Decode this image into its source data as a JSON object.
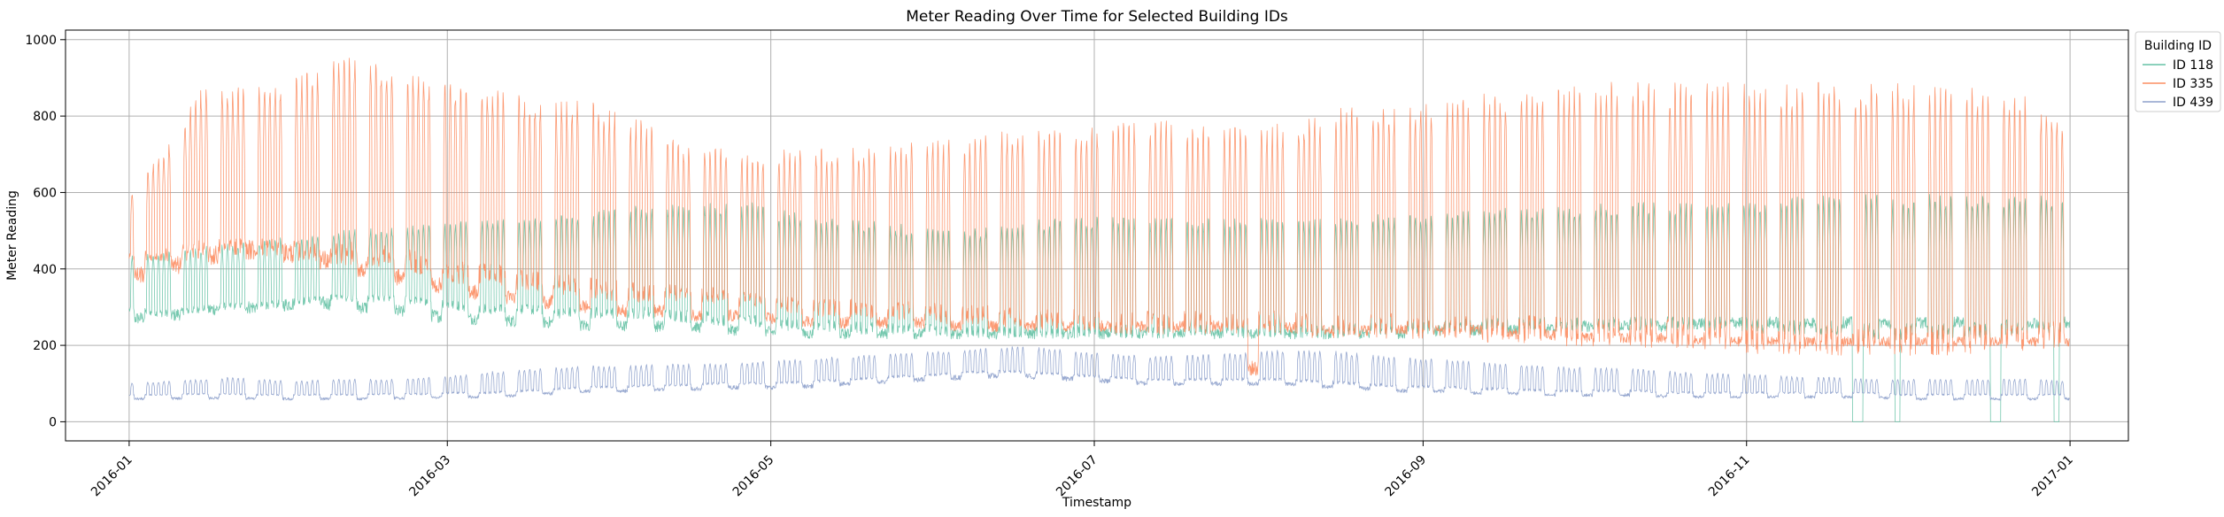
{
  "chart_data": {
    "type": "line",
    "title": "Meter Reading Over Time for Selected Building IDs",
    "xlabel": "Timestamp",
    "ylabel": "Meter Reading",
    "xlim": [
      "2015-12-20",
      "2017-01-12"
    ],
    "ylim": [
      -50,
      1025
    ],
    "x_ticks": [
      "2016-01",
      "2016-03",
      "2016-05",
      "2016-07",
      "2016-09",
      "2016-11",
      "2017-01"
    ],
    "y_ticks": [
      0,
      200,
      400,
      600,
      800,
      1000
    ],
    "grid": true,
    "legend": {
      "title": "Building ID",
      "placement": "outside top-right"
    },
    "series": [
      {
        "name": "ID 118",
        "color": "#66c2a5",
        "frequency": "daily",
        "start": "2016-01-01",
        "weekday_high": [
          430,
          440,
          450,
          460,
          470,
          480,
          490,
          500,
          500,
          510,
          520,
          520,
          520,
          530,
          540,
          550,
          560,
          560,
          560,
          560,
          540,
          520,
          520,
          510,
          500,
          490,
          500,
          510,
          520,
          520,
          530,
          520,
          520,
          520,
          520,
          520,
          520,
          520,
          530,
          530,
          540,
          540,
          550,
          550,
          550,
          560,
          560,
          560,
          560,
          570,
          570,
          580,
          580,
          580,
          580,
          580,
          580,
          580,
          580,
          570
        ],
        "weekday_low": [
          290,
          280,
          290,
          300,
          300,
          310,
          320,
          320,
          320,
          310,
          300,
          290,
          290,
          280,
          280,
          280,
          280,
          270,
          260,
          260,
          250,
          250,
          240,
          240,
          240,
          230,
          230,
          230,
          230,
          230,
          230,
          230,
          230,
          230,
          230,
          230,
          230,
          230,
          240,
          240,
          240,
          250,
          250,
          250,
          250,
          250,
          250,
          250,
          250,
          250,
          240,
          240,
          240,
          230,
          230,
          230,
          230,
          240,
          240,
          250
        ],
        "weekend_level": [
          270,
          275,
          290,
          300,
          300,
          310,
          310,
          300,
          290,
          280,
          270,
          270,
          260,
          260,
          250,
          250,
          250,
          250,
          240,
          240,
          230,
          230,
          230,
          230,
          230,
          230,
          230,
          230,
          230,
          230,
          230,
          230,
          230,
          230,
          230,
          230,
          230,
          230,
          230,
          230,
          240,
          240,
          240,
          240,
          250,
          250,
          250,
          250,
          260,
          260,
          260,
          260,
          260,
          260,
          260,
          260,
          260,
          260,
          260,
          260
        ],
        "zero_dates": [
          "2016-11-21",
          "2016-11-22",
          "2016-11-29",
          "2016-12-17",
          "2016-12-18",
          "2016-12-29"
        ]
      },
      {
        "name": "ID 335",
        "color": "#fc8d62",
        "frequency": "daily",
        "start": "2016-01-01",
        "weekday_high": [
          600,
          700,
          850,
          860,
          860,
          880,
          920,
          940,
          900,
          880,
          860,
          850,
          830,
          820,
          820,
          780,
          760,
          700,
          700,
          680,
          700,
          700,
          700,
          700,
          720,
          720,
          740,
          740,
          740,
          750,
          760,
          770,
          760,
          760,
          760,
          760,
          780,
          800,
          800,
          800,
          820,
          830,
          840,
          850,
          850,
          860,
          860,
          860,
          860,
          860,
          860,
          860,
          860,
          860,
          860,
          860,
          850,
          840,
          820,
          780
        ],
        "weekday_low": [
          430,
          430,
          440,
          450,
          450,
          440,
          430,
          430,
          420,
          400,
          380,
          380,
          360,
          350,
          340,
          330,
          330,
          330,
          320,
          310,
          300,
          290,
          290,
          280,
          280,
          270,
          270,
          260,
          260,
          260,
          250,
          250,
          250,
          250,
          250,
          250,
          240,
          240,
          240,
          240,
          230,
          230,
          230,
          230,
          220,
          220,
          220,
          220,
          210,
          210,
          200,
          200,
          200,
          200,
          200,
          200,
          200,
          210,
          210,
          220
        ],
        "weekend_level": [
          380,
          400,
          420,
          450,
          450,
          440,
          420,
          400,
          380,
          360,
          350,
          330,
          320,
          310,
          300,
          290,
          290,
          280,
          280,
          270,
          270,
          260,
          260,
          260,
          260,
          250,
          250,
          250,
          250,
          250,
          250,
          250,
          250,
          250,
          250,
          250,
          240,
          240,
          240,
          240,
          240,
          240,
          230,
          230,
          220,
          220,
          220,
          220,
          210,
          210,
          210,
          210,
          210,
          210,
          210,
          210,
          210,
          210,
          210,
          210
        ],
        "dip_dates": [
          "2016-07-30",
          "2016-07-31"
        ]
      },
      {
        "name": "ID 439",
        "color": "#8da0cb",
        "frequency": "daily",
        "start": "2016-01-01",
        "weekday_high": [
          100,
          105,
          110,
          115,
          110,
          105,
          110,
          110,
          110,
          115,
          120,
          130,
          135,
          140,
          145,
          145,
          150,
          150,
          150,
          155,
          160,
          165,
          170,
          175,
          180,
          185,
          190,
          195,
          190,
          180,
          175,
          170,
          170,
          175,
          180,
          185,
          185,
          180,
          170,
          165,
          160,
          155,
          150,
          145,
          140,
          140,
          135,
          130,
          125,
          125,
          120,
          115,
          115,
          110,
          110,
          110,
          110,
          110,
          110,
          105
        ],
        "weekday_low": [
          70,
          70,
          72,
          72,
          70,
          70,
          70,
          70,
          72,
          72,
          75,
          75,
          80,
          85,
          90,
          90,
          95,
          95,
          100,
          100,
          100,
          105,
          110,
          115,
          120,
          125,
          130,
          130,
          125,
          120,
          115,
          110,
          110,
          110,
          110,
          110,
          105,
          100,
          95,
          90,
          90,
          85,
          85,
          80,
          80,
          80,
          80,
          75,
          75,
          75,
          75,
          75,
          75,
          75,
          70,
          70,
          70,
          70,
          70,
          70
        ],
        "weekend_level": [
          60,
          60,
          62,
          62,
          60,
          60,
          60,
          60,
          62,
          62,
          65,
          65,
          70,
          75,
          80,
          80,
          85,
          85,
          90,
          90,
          90,
          95,
          100,
          105,
          110,
          115,
          120,
          120,
          115,
          110,
          105,
          100,
          100,
          100,
          100,
          100,
          95,
          90,
          85,
          80,
          80,
          75,
          75,
          70,
          70,
          70,
          70,
          65,
          65,
          65,
          65,
          65,
          65,
          65,
          60,
          60,
          60,
          60,
          60,
          60
        ]
      }
    ]
  }
}
